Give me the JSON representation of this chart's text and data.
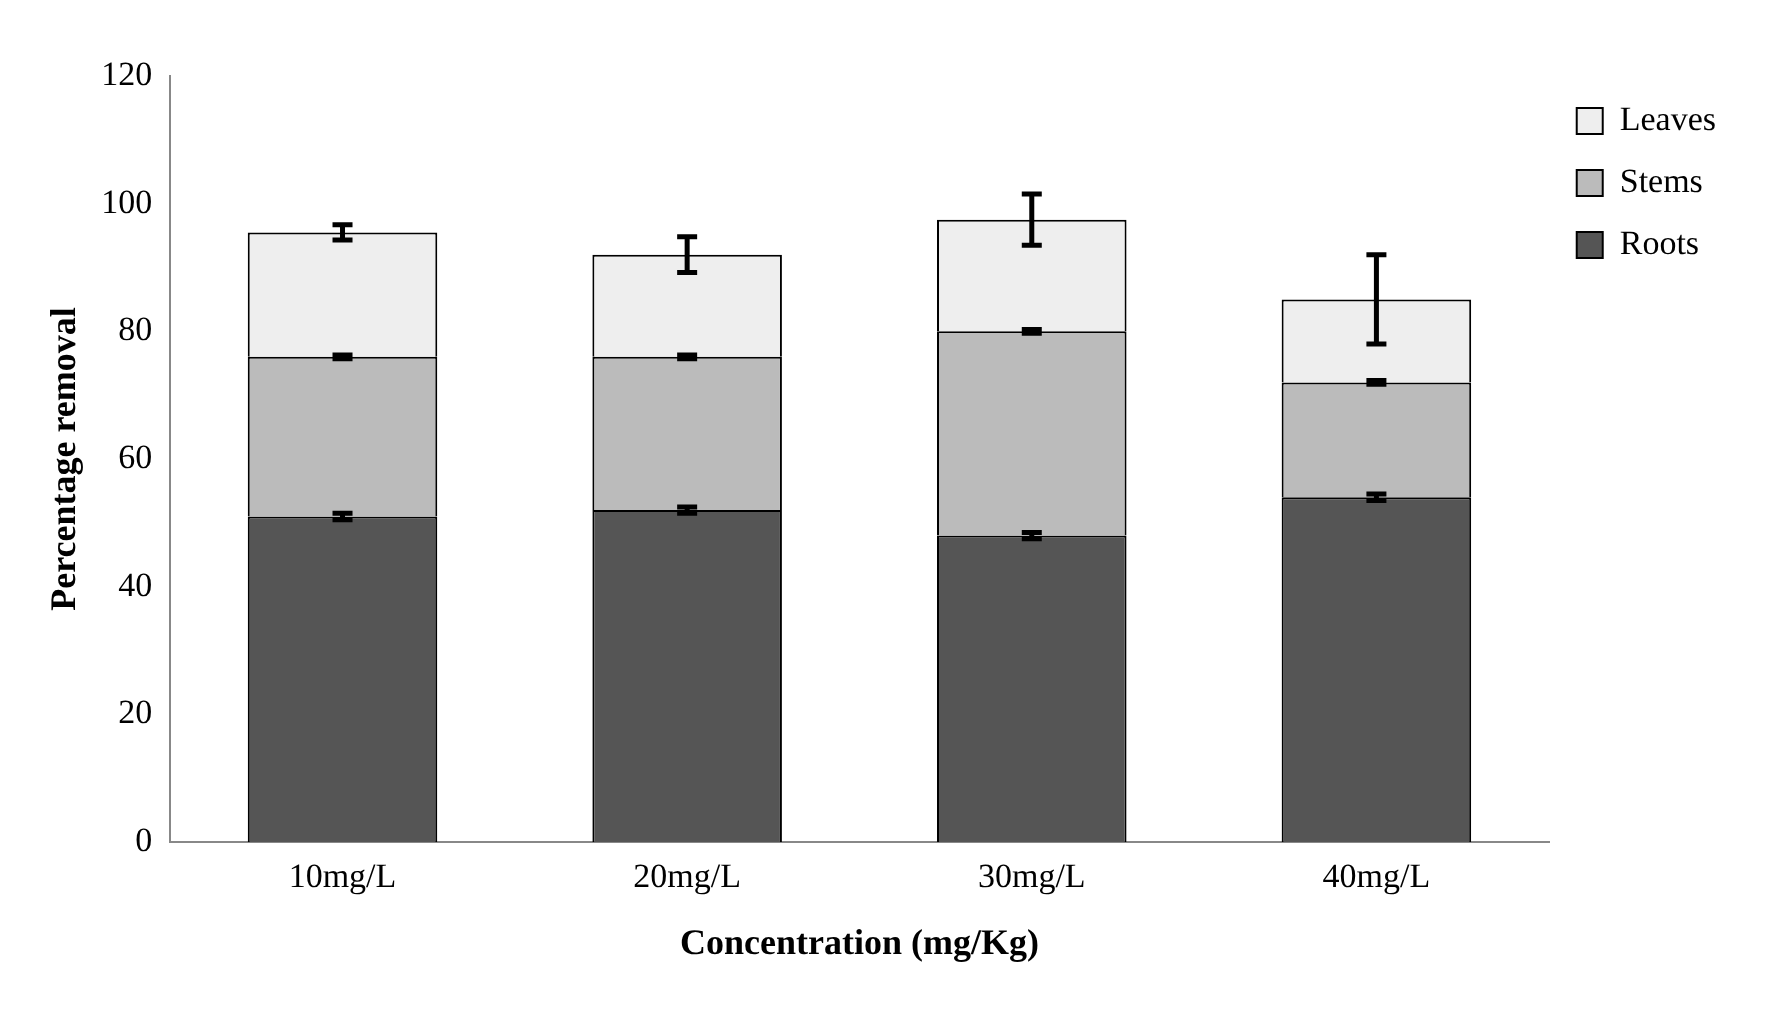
{
  "chart_data": {
    "type": "bar",
    "stacked": true,
    "xlabel": "Concentration (mg/Kg)",
    "ylabel": "Percentage removal",
    "categories": [
      "10mg/L",
      "20mg/L",
      "30mg/L",
      "40mg/L"
    ],
    "series": [
      {
        "name": "Roots",
        "color": "#555555",
        "values": [
          51,
          52,
          48,
          54
        ],
        "errors": [
          0.5,
          0.5,
          0.5,
          0.5
        ]
      },
      {
        "name": "Stems",
        "color": "#bbbbbb",
        "values": [
          25,
          24,
          32,
          18
        ],
        "errors": [
          0.3,
          0.3,
          0.3,
          0.3
        ]
      },
      {
        "name": "Leaves",
        "color": "#eeeeee",
        "values": [
          19.5,
          16,
          17.5,
          13
        ],
        "errors": [
          1.2,
          2.8,
          4,
          7
        ]
      }
    ],
    "ylim": [
      0,
      120
    ],
    "yticks": [
      0,
      20,
      40,
      60,
      80,
      100,
      120
    ],
    "grid": false,
    "legend": "top right"
  }
}
